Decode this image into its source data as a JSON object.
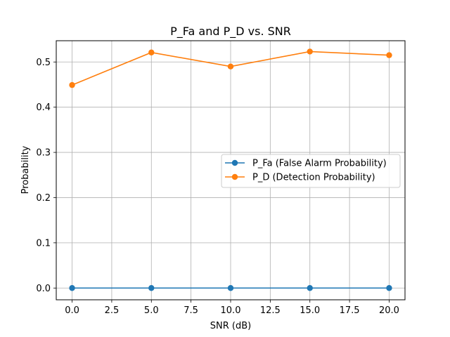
{
  "chart_data": {
    "type": "line",
    "title": "P_Fa and P_D vs. SNR",
    "xlabel": "SNR (dB)",
    "ylabel": "Probability",
    "x": [
      0,
      5,
      10,
      15,
      20
    ],
    "xlim": [
      -1,
      21
    ],
    "ylim": [
      -0.026,
      0.547
    ],
    "xticks": [
      0.0,
      2.5,
      5.0,
      7.5,
      10.0,
      12.5,
      15.0,
      17.5,
      20.0
    ],
    "xtick_labels": [
      "0.0",
      "2.5",
      "5.0",
      "7.5",
      "10.0",
      "12.5",
      "15.0",
      "17.5",
      "20.0"
    ],
    "yticks": [
      0.0,
      0.1,
      0.2,
      0.3,
      0.4,
      0.5
    ],
    "ytick_labels": [
      "0.0",
      "0.1",
      "0.2",
      "0.3",
      "0.4",
      "0.5"
    ],
    "grid": true,
    "legend_position": "center-right",
    "series": [
      {
        "name": "P_Fa (False Alarm Probability)",
        "color": "#1f77b4",
        "marker": "circle",
        "values": [
          0.0,
          0.0,
          0.0,
          0.0,
          0.0
        ]
      },
      {
        "name": "P_D (Detection Probability)",
        "color": "#ff7f0e",
        "marker": "circle",
        "values": [
          0.449,
          0.521,
          0.49,
          0.523,
          0.515
        ]
      }
    ]
  }
}
